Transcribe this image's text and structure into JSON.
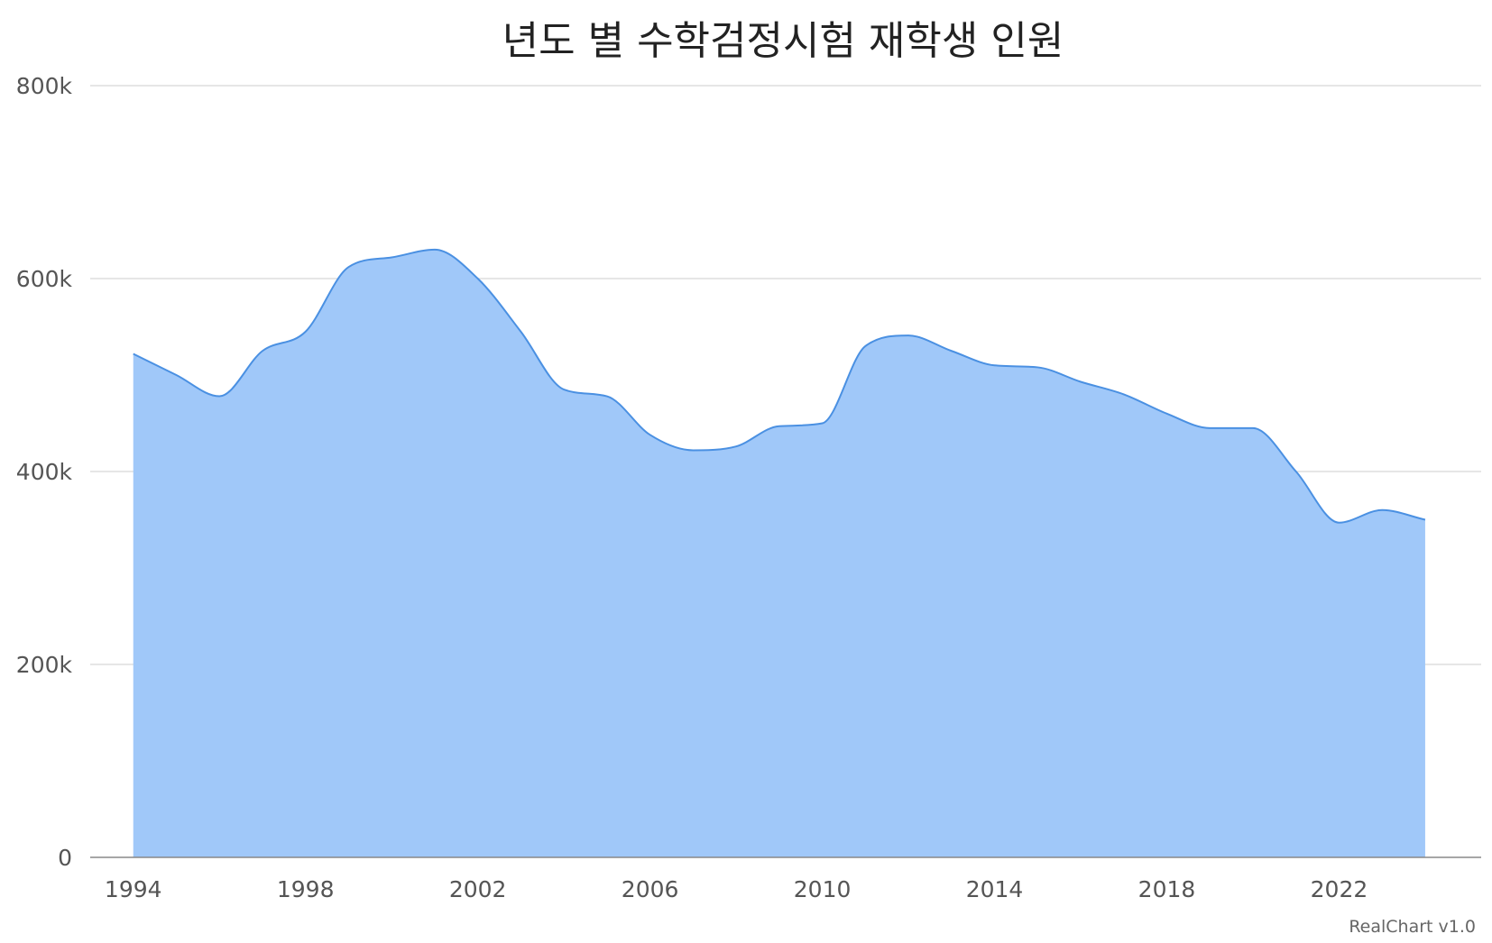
{
  "chart_data": {
    "type": "area",
    "title": "년도 별 수학검정시험 재학생 인원",
    "credits": "RealChart v1.0",
    "colors": {
      "area_fill": "#a0c8f9",
      "area_line": "#4a90e2",
      "grid": "#dddddd",
      "axis": "#888888"
    },
    "grid": true,
    "ylim": [
      0,
      800000
    ],
    "y_ticks": [
      0,
      200000,
      400000,
      600000,
      800000
    ],
    "y_tick_labels": [
      "0",
      "200k",
      "400k",
      "600k",
      "800k"
    ],
    "xlim": [
      1993,
      2025.3
    ],
    "x_ticks": [
      1994,
      1998,
      2002,
      2006,
      2010,
      2014,
      2018,
      2022
    ],
    "x_tick_labels": [
      "1994",
      "1998",
      "2002",
      "2006",
      "2010",
      "2014",
      "2018",
      "2022"
    ],
    "x": [
      1994,
      1995,
      1996,
      1997,
      1998,
      1999,
      2000,
      2001,
      2002,
      2003,
      2004,
      2005,
      2006,
      2007,
      2008,
      2009,
      2010,
      2011,
      2012,
      2013,
      2014,
      2015,
      2016,
      2017,
      2018,
      2019,
      2020,
      2021,
      2022,
      2023,
      2024
    ],
    "series": [
      {
        "values": [
          522000,
          500000,
          478000,
          525000,
          545000,
          612000,
          622000,
          630000,
          600000,
          545000,
          485000,
          478000,
          438000,
          422000,
          426000,
          447000,
          450000,
          530000,
          541000,
          525000,
          510000,
          508000,
          493000,
          480000,
          460000,
          445000,
          445000,
          400000,
          347000,
          360000,
          350000
        ]
      }
    ]
  }
}
